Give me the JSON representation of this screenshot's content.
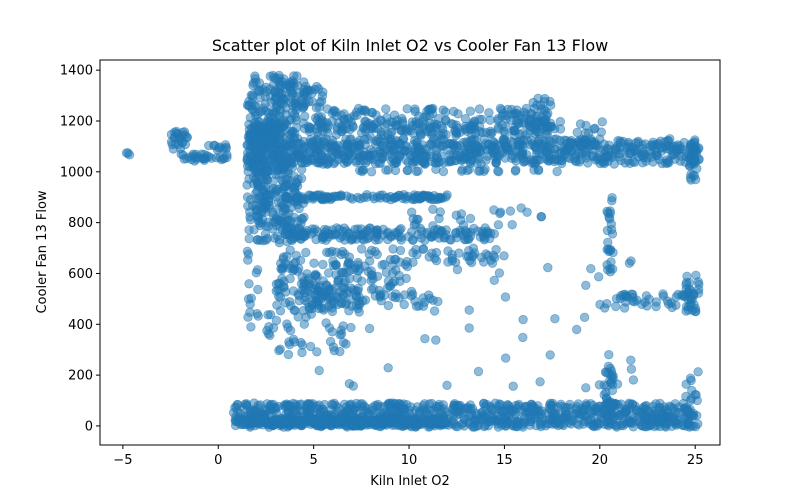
{
  "chart_data": {
    "type": "scatter",
    "title": "Scatter plot of Kiln Inlet O2 vs Cooler Fan 13 Flow",
    "xlabel": "Kiln Inlet O2",
    "ylabel": "Cooler Fan 13 Flow",
    "xlim": [
      -6.2,
      26.3
    ],
    "ylim": [
      -75,
      1440
    ],
    "x_ticks": [
      -5,
      0,
      5,
      10,
      15,
      20,
      25
    ],
    "y_ticks": [
      0,
      200,
      400,
      600,
      800,
      1000,
      1200,
      1400
    ],
    "grid": false,
    "legend": "none",
    "point_color": "#1f77b4",
    "point_alpha": 0.5,
    "clusters": [
      {
        "x_range": [
          1.5,
          4.5
        ],
        "y_range": [
          720,
          1380
        ],
        "n": 420
      },
      {
        "x_range": [
          1.5,
          3.5
        ],
        "y_range": [
          1000,
          1200
        ],
        "n": 160
      },
      {
        "x_range": [
          3.5,
          25
        ],
        "y_range": [
          1030,
          1130
        ],
        "n": 700
      },
      {
        "x_range": [
          4.5,
          17.3
        ],
        "y_range": [
          1140,
          1250
        ],
        "n": 200
      },
      {
        "x_range": [
          4.5,
          20.5
        ],
        "y_range": [
          1150,
          1200
        ],
        "n": 90
      },
      {
        "x_range": [
          16.5,
          17.5
        ],
        "y_range": [
          1150,
          1290
        ],
        "n": 30
      },
      {
        "x_range": [
          3,
          5.5
        ],
        "y_range": [
          1250,
          1340
        ],
        "n": 40
      },
      {
        "x_range": [
          3.5,
          12
        ],
        "y_range": [
          890,
          910
        ],
        "n": 110
      },
      {
        "x_range": [
          3.5,
          14.5
        ],
        "y_range": [
          730,
          780
        ],
        "n": 160
      },
      {
        "x_range": [
          3,
          15
        ],
        "y_range": [
          640,
          700
        ],
        "n": 70
      },
      {
        "x_range": [
          3,
          10
        ],
        "y_range": [
          530,
          640
        ],
        "n": 100
      },
      {
        "x_range": [
          3,
          7.5
        ],
        "y_range": [
          450,
          560
        ],
        "n": 80
      },
      {
        "x_range": [
          2.5,
          7
        ],
        "y_range": [
          280,
          440
        ],
        "n": 40
      },
      {
        "x_range": [
          5,
          12
        ],
        "y_range": [
          470,
          520
        ],
        "n": 40
      },
      {
        "x_range": [
          0.8,
          25
        ],
        "y_range": [
          -5,
          90
        ],
        "n": 900
      },
      {
        "x_range": [
          1.5,
          12
        ],
        "y_range": [
          0,
          30
        ],
        "n": 300
      },
      {
        "x_range": [
          20,
          25
        ],
        "y_range": [
          460,
          520
        ],
        "n": 40
      },
      {
        "x_range": [
          20.3,
          20.7
        ],
        "y_range": [
          600,
          900
        ],
        "n": 25
      },
      {
        "x_range": [
          20.2,
          20.7
        ],
        "y_range": [
          -5,
          240
        ],
        "n": 40
      },
      {
        "x_range": [
          24.5,
          25.2
        ],
        "y_range": [
          450,
          600
        ],
        "n": 30
      },
      {
        "x_range": [
          24.5,
          25.2
        ],
        "y_range": [
          -5,
          220
        ],
        "n": 20
      },
      {
        "x_range": [
          24.7,
          25.2
        ],
        "y_range": [
          960,
          1110
        ],
        "n": 30
      },
      {
        "x_range": [
          -2.5,
          -1.5
        ],
        "y_range": [
          1080,
          1160
        ],
        "n": 25
      },
      {
        "x_range": [
          -2,
          0.5
        ],
        "y_range": [
          1040,
          1070
        ],
        "n": 30
      },
      {
        "x_range": [
          -5,
          -4.5
        ],
        "y_range": [
          1065,
          1075
        ],
        "n": 3
      },
      {
        "x_range": [
          -0.5,
          0.5
        ],
        "y_range": [
          1085,
          1110
        ],
        "n": 10
      },
      {
        "x_range": [
          6,
          18
        ],
        "y_range": [
          1000,
          1010
        ],
        "n": 30
      },
      {
        "x_range": [
          10,
          17
        ],
        "y_range": [
          780,
          860
        ],
        "n": 25
      },
      {
        "x_range": [
          5,
          22
        ],
        "y_range": [
          150,
          650
        ],
        "n": 50
      },
      {
        "x_range": [
          1.5,
          2.2
        ],
        "y_range": [
          380,
          700
        ],
        "n": 15
      }
    ]
  }
}
